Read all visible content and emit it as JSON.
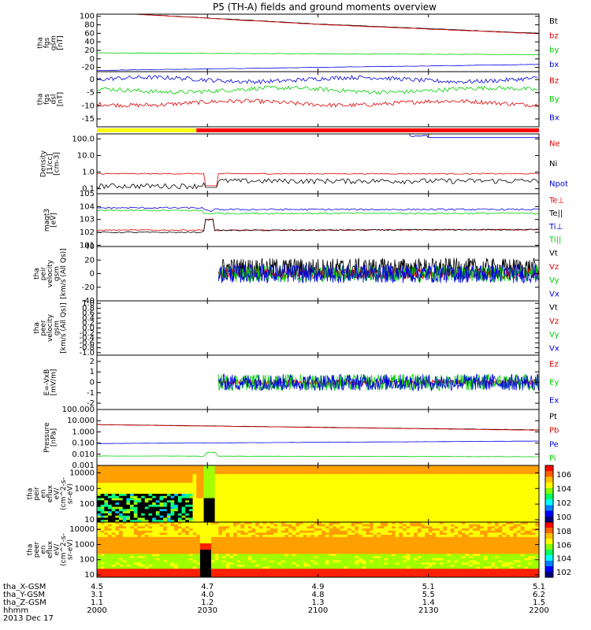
{
  "title": "P5 (TH-A) fields and ground moments overview",
  "colors": {
    "black": "#000000",
    "red": "#e00000",
    "green": "#00d000",
    "blue": "#0000e0",
    "yellow": "#ffff00",
    "bar_red": "#ff0000"
  },
  "chart_data": [
    {
      "type": "line",
      "id": "fgs_gsm_total",
      "ylabel": [
        "tha",
        "fgs",
        "gsm",
        "[nT]"
      ],
      "ylim": [
        -30,
        105
      ],
      "yticks": [
        100,
        80,
        60,
        40,
        20,
        0,
        -20
      ],
      "legend": [
        {
          "label": "Bt",
          "color": "black"
        },
        {
          "label": "bz",
          "color": "red"
        },
        {
          "label": "by",
          "color": "green"
        },
        {
          "label": "bx",
          "color": "blue"
        }
      ],
      "x_minutes": [
        0,
        60,
        120
      ],
      "series": [
        {
          "name": "Bt",
          "color": "black",
          "values": [
            110,
            82,
            60
          ]
        },
        {
          "name": "bz",
          "color": "red",
          "values": [
            110,
            81,
            59
          ]
        },
        {
          "name": "by",
          "color": "green",
          "values": [
            14,
            12,
            10
          ]
        },
        {
          "name": "bx",
          "color": "blue",
          "values": [
            -27,
            -20,
            -13
          ]
        }
      ]
    },
    {
      "type": "line",
      "id": "fgs_dsl",
      "ylabel": [
        "tha",
        "fgs",
        "dsl",
        "[nT]"
      ],
      "ylim": [
        -18,
        3
      ],
      "yticks": [
        0,
        -5,
        -10,
        -15
      ],
      "legend": [
        {
          "label": "Bz",
          "color": "red"
        },
        {
          "label": "By",
          "color": "green"
        },
        {
          "label": "Bx",
          "color": "blue"
        }
      ],
      "series": [
        {
          "name": "Bz",
          "color": "red",
          "mean": -9
        },
        {
          "name": "By",
          "color": "green",
          "mean": -4
        },
        {
          "name": "Bx",
          "color": "blue",
          "mean": 0
        }
      ]
    },
    {
      "type": "bar",
      "id": "mode_bar",
      "segments": [
        {
          "x_end_minutes": 27,
          "color": "yellow"
        },
        {
          "x_end_minutes": 120,
          "color": "bar_red"
        }
      ]
    },
    {
      "type": "line",
      "id": "density",
      "yscale": "log",
      "ylabel": [
        "Density",
        "[1/cc]",
        "[cm-3]"
      ],
      "ylim": [
        0.05,
        200
      ],
      "yticks": [
        "100.0",
        "10.0",
        "1.0",
        "0.1"
      ],
      "legend": [
        {
          "label": "Ne",
          "color": "red"
        },
        {
          "label": "Ni",
          "color": "black"
        },
        {
          "label": "Npot",
          "color": "blue"
        }
      ],
      "series": [
        {
          "name": "Ne",
          "color": "red",
          "values": [
            0.8,
            0.8
          ]
        },
        {
          "name": "Ni",
          "color": "black",
          "values": [
            0.15,
            0.3
          ]
        },
        {
          "name": "Npot",
          "color": "blue",
          "values": [
            150,
            120
          ]
        }
      ]
    },
    {
      "type": "line",
      "id": "temperature",
      "yscale": "log",
      "ylabel": [
        "magt3",
        "[eV]"
      ],
      "ylim": [
        8,
        100000
      ],
      "yticks": [
        "10^5",
        "10^4",
        "10^3",
        "10^2",
        "10^1"
      ],
      "legend": [
        {
          "label": "Te⊥",
          "color": "red"
        },
        {
          "label": "Te||",
          "color": "black"
        },
        {
          "label": "Ti⊥",
          "color": "blue"
        },
        {
          "label": "Ti||",
          "color": "green"
        }
      ],
      "series": [
        {
          "name": "Te⊥",
          "color": "red",
          "values": [
            150,
            150
          ]
        },
        {
          "name": "Te||",
          "color": "black",
          "values": [
            100,
            150
          ]
        },
        {
          "name": "Ti⊥",
          "color": "blue",
          "values": [
            8000,
            6000
          ]
        },
        {
          "name": "Ti||",
          "color": "green",
          "values": [
            5000,
            3000
          ]
        }
      ]
    },
    {
      "type": "line",
      "id": "peir_velocity",
      "ylabel": [
        "tha",
        "peir",
        "velocity",
        "gsm",
        "[km/s (All Qs)]"
      ],
      "ylim": [
        -40,
        40
      ],
      "yticks": [
        40,
        20,
        0,
        -20,
        -40
      ],
      "data_start_minutes": 33,
      "legend": [
        {
          "label": "Vt",
          "color": "black"
        },
        {
          "label": "Vz",
          "color": "red"
        },
        {
          "label": "Vy",
          "color": "green"
        },
        {
          "label": "Vx",
          "color": "blue"
        }
      ],
      "series": [
        {
          "name": "Vt",
          "color": "black",
          "mean": 8,
          "amplitude": 15
        },
        {
          "name": "Vz",
          "color": "red",
          "mean": 0,
          "amplitude": 8
        },
        {
          "name": "Vy",
          "color": "green",
          "mean": 0,
          "amplitude": 12
        },
        {
          "name": "Vx",
          "color": "blue",
          "mean": 0,
          "amplitude": 14
        }
      ]
    },
    {
      "type": "line",
      "id": "peer_velocity",
      "ylabel": [
        "tha",
        "peer",
        "velocity",
        "gsm",
        "[km/s (All Qs)]"
      ],
      "ylim": [
        -1.1,
        1.1
      ],
      "yticks": [
        "1.0",
        "0.8",
        "0.6",
        "0.4",
        "0.2",
        "0.0",
        "-0.2",
        "-0.4",
        "-0.6",
        "-0.8",
        "-1.0"
      ],
      "legend": [
        {
          "label": "Vt",
          "color": "black"
        },
        {
          "label": "Vz",
          "color": "red"
        },
        {
          "label": "Vy",
          "color": "green"
        },
        {
          "label": "Vx",
          "color": "blue"
        }
      ],
      "series": []
    },
    {
      "type": "line",
      "id": "efield",
      "ylabel": [
        "E=-VxB",
        "[mV/m]"
      ],
      "ylim": [
        -2.6,
        2.6
      ],
      "yticks": [
        2,
        1,
        0,
        -1,
        -2
      ],
      "data_start_minutes": 33,
      "legend": [
        {
          "label": "Ez",
          "color": "red"
        },
        {
          "label": "Ey",
          "color": "green"
        },
        {
          "label": "Ex",
          "color": "blue"
        }
      ],
      "series": [
        {
          "name": "Ez",
          "color": "red",
          "mean": 0,
          "amplitude": 0.25
        },
        {
          "name": "Ey",
          "color": "green",
          "mean": 0,
          "amplitude": 0.8
        },
        {
          "name": "Ex",
          "color": "blue",
          "mean": 0,
          "amplitude": 0.8
        }
      ]
    },
    {
      "type": "line",
      "id": "pressure",
      "yscale": "log",
      "ylabel": [
        "Pressure",
        "[nPa]"
      ],
      "ylim": [
        0.001,
        100
      ],
      "yticks": [
        "100.000",
        "10.000",
        "1.000",
        "0.100",
        "0.010",
        "0.001"
      ],
      "legend": [
        {
          "label": "Pt",
          "color": "black"
        },
        {
          "label": "Pb",
          "color": "red"
        },
        {
          "label": "Pe",
          "color": "blue"
        },
        {
          "label": "Pi",
          "color": "green"
        }
      ],
      "series": [
        {
          "name": "Pt",
          "color": "black",
          "values": [
            4.5,
            1.5
          ]
        },
        {
          "name": "Pb",
          "color": "red",
          "values": [
            4.4,
            1.4
          ]
        },
        {
          "name": "Pe",
          "color": "blue",
          "values": [
            0.09,
            0.15
          ]
        },
        {
          "name": "Pi",
          "color": "green",
          "values": [
            0.007,
            0.006
          ]
        }
      ]
    },
    {
      "type": "heatmap",
      "id": "peir_spectrogram",
      "ylabel": [
        "tha",
        "peir",
        "en",
        "eflux",
        "eV/",
        "(cm^2-s-",
        "sr-eV)"
      ],
      "yscale": "log",
      "ylim": [
        7,
        30000
      ],
      "yticks": [
        "10000",
        "1000",
        "100",
        "10"
      ],
      "colorbar_ticks": [
        "10^6",
        "10^4",
        "10^2",
        "10^0"
      ]
    },
    {
      "type": "heatmap",
      "id": "peer_spectrogram",
      "ylabel": [
        "tha",
        "peer",
        "en",
        "eflux",
        "eV/",
        "(cm^2-s-",
        "sr-eV)"
      ],
      "yscale": "log",
      "ylim": [
        7,
        30000
      ],
      "yticks": [
        "10000",
        "1000",
        "100",
        "10"
      ],
      "colorbar_ticks": [
        "10^8",
        "10^6",
        "10^4",
        "10^2"
      ]
    }
  ],
  "xaxis": {
    "rows": [
      {
        "label": "tha_X-GSM",
        "values": [
          "4.5",
          "4.7",
          "4.9",
          "5.1",
          "5.1"
        ]
      },
      {
        "label": "tha_Y-GSM",
        "values": [
          "3.1",
          "4.0",
          "4.8",
          "5.5",
          "6.2"
        ]
      },
      {
        "label": "tha_Z-GSM",
        "values": [
          "1.1",
          "1.2",
          "1.3",
          "1.4",
          "1.5"
        ]
      },
      {
        "label": "hhmm",
        "values": [
          "2000",
          "2030",
          "2100",
          "2130",
          "2200"
        ]
      }
    ],
    "date": "2013 Dec 17"
  }
}
